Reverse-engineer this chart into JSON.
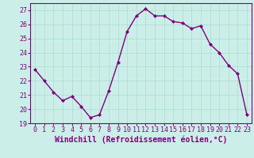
{
  "x": [
    0,
    1,
    2,
    3,
    4,
    5,
    6,
    7,
    8,
    9,
    10,
    11,
    12,
    13,
    14,
    15,
    16,
    17,
    18,
    19,
    20,
    21,
    22,
    23
  ],
  "y": [
    22.8,
    22.0,
    21.2,
    20.6,
    20.9,
    20.2,
    19.4,
    19.6,
    21.3,
    23.3,
    25.5,
    26.6,
    27.1,
    26.6,
    26.6,
    26.2,
    26.1,
    25.7,
    25.9,
    24.6,
    24.0,
    23.1,
    22.5,
    19.6
  ],
  "line_color": "#800080",
  "marker": "D",
  "marker_size": 2,
  "line_width": 1.0,
  "xlabel": "Windchill (Refroidissement éolien,°C)",
  "xlabel_fontsize": 7,
  "ylim": [
    19,
    27.5
  ],
  "xlim": [
    -0.5,
    23.5
  ],
  "yticks": [
    19,
    20,
    21,
    22,
    23,
    24,
    25,
    26,
    27
  ],
  "xticks": [
    0,
    1,
    2,
    3,
    4,
    5,
    6,
    7,
    8,
    9,
    10,
    11,
    12,
    13,
    14,
    15,
    16,
    17,
    18,
    19,
    20,
    21,
    22,
    23
  ],
  "tick_fontsize": 6,
  "bg_color": "#cceee8",
  "grid_color": "#aaddcc",
  "grid_linewidth": 0.5,
  "spine_color": "#800080"
}
